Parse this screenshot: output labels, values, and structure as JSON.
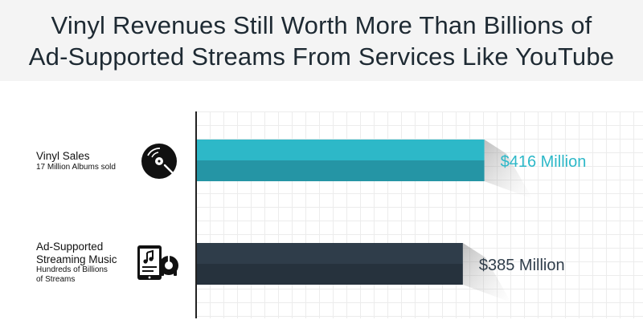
{
  "title": {
    "line1": "Vinyl Revenues Still Worth More Than Billions of",
    "line2": "Ad-Supported Streams From Services Like YouTube"
  },
  "categories": [
    {
      "name": "Vinyl Sales",
      "detail": "17 Million Albums sold",
      "icon": "vinyl-record-icon"
    },
    {
      "name_line1": "Ad-Supported",
      "name_line2": "Streaming Music",
      "detail_line1": "Hundreds of Billions",
      "detail_line2": "of Streams",
      "icon": "tablet-music-icon"
    }
  ],
  "chart_data": {
    "type": "bar",
    "orientation": "horizontal",
    "title": "Vinyl Revenues Still Worth More Than Billions of Ad-Supported Streams From Services Like YouTube",
    "categories": [
      "Vinyl Sales",
      "Ad-Supported Streaming Music"
    ],
    "values": [
      416,
      385
    ],
    "value_labels": [
      "$416 Million",
      "$385 Million"
    ],
    "unit": "Million USD",
    "xlim": [
      0,
      645
    ],
    "grid": true,
    "colors": {
      "vinyl": "#2db8c8",
      "vinyl_dark": "#2595a5",
      "streaming": "#2f3d4a",
      "streaming_dark": "#26323d",
      "label_vinyl": "#2db8c8",
      "label_streaming": "#2f3d4a"
    }
  }
}
